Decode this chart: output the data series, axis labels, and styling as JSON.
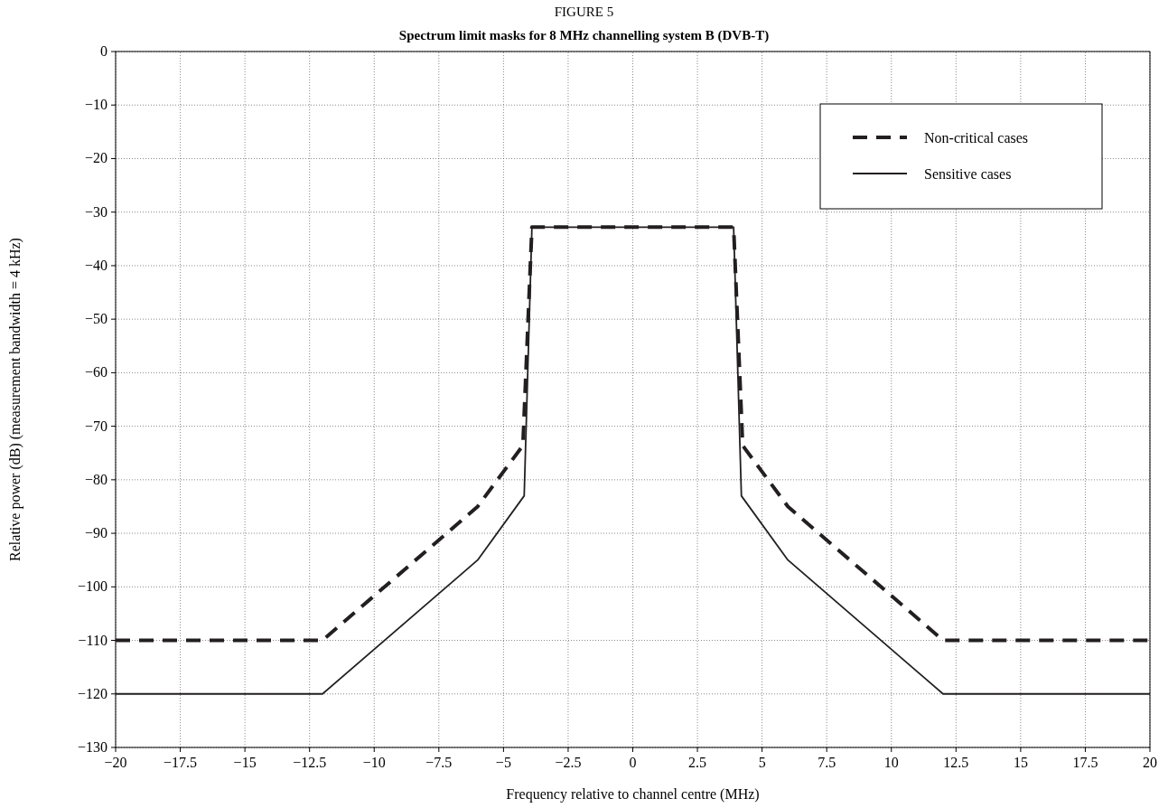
{
  "chart_data": {
    "type": "line",
    "title": "FIGURE 5",
    "subtitle": "Spectrum limit masks for 8 MHz channelling system B (DVB-T)",
    "xlabel": "Frequency relative to channel centre (MHz)",
    "ylabel": "Relative power (dB) (measurement bandwidth = 4 kHz)",
    "series": [
      {
        "name": "Non-critical cases",
        "color": "#231f20",
        "line_style": "dashed",
        "x": [
          -20,
          -12,
          -6,
          -4.25,
          -3.9,
          3.9,
          4.25,
          6,
          12,
          20
        ],
        "values": [
          -110,
          -110,
          -85,
          -73.6,
          -32.8,
          -32.8,
          -73.6,
          -85,
          -110,
          -110
        ]
      },
      {
        "name": "Sensitive cases",
        "color": "#231f20",
        "line_style": "solid",
        "x": [
          -20,
          -12,
          -6,
          -4.2,
          -3.9,
          3.9,
          4.2,
          6,
          12,
          20
        ],
        "values": [
          -120,
          -120,
          -95,
          -83,
          -32.8,
          -32.8,
          -83,
          -95,
          -120,
          -120
        ]
      }
    ],
    "xlim": [
      -20,
      20
    ],
    "xticks": [
      {
        "value": -20,
        "label": "−20"
      },
      {
        "value": -17.5,
        "label": "−17.5"
      },
      {
        "value": -15,
        "label": "−15"
      },
      {
        "value": -12.5,
        "label": "−12.5"
      },
      {
        "value": -10,
        "label": "−10"
      },
      {
        "value": -7.5,
        "label": "−7.5"
      },
      {
        "value": -5,
        "label": "−5"
      },
      {
        "value": -2.5,
        "label": "−2.5"
      },
      0,
      2.5,
      5,
      7.5,
      10,
      12.5,
      15,
      17.5,
      20
    ],
    "ylim": [
      -130,
      0
    ],
    "yticks": [
      0,
      {
        "value": -10,
        "label": "−10"
      },
      {
        "value": -20,
        "label": "−20"
      },
      {
        "value": -30,
        "label": "−30"
      },
      {
        "value": -40,
        "label": "−40"
      },
      {
        "value": -50,
        "label": "−50"
      },
      {
        "value": -60,
        "label": "−60"
      },
      {
        "value": -70,
        "label": "−70"
      },
      {
        "value": -80,
        "label": "−80"
      },
      {
        "value": -90,
        "label": "−90"
      },
      {
        "value": -100,
        "label": "−100"
      },
      {
        "value": -110,
        "label": "−110"
      },
      {
        "value": -120,
        "label": "−120"
      },
      {
        "value": -130,
        "label": "−130"
      }
    ],
    "grid": true,
    "legend": "top right",
    "marker": "none"
  }
}
